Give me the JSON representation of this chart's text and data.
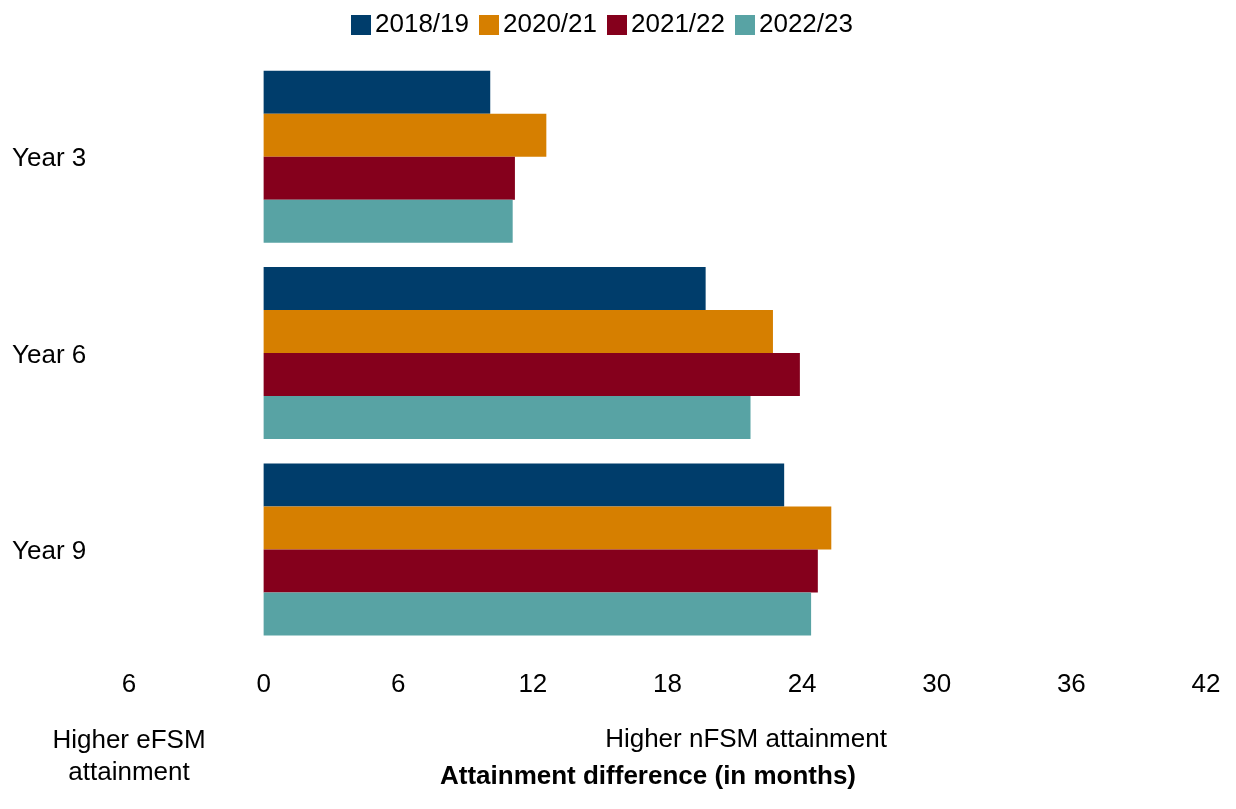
{
  "chart_data": {
    "type": "bar",
    "orientation": "horizontal",
    "xlabel": "Attainment difference (in months)",
    "categories": [
      "Year 3",
      "Year 6",
      "Year 9"
    ],
    "series": [
      {
        "name": "2018/19",
        "color": "#003d6b",
        "values": [
          10.1,
          19.7,
          23.2
        ]
      },
      {
        "name": "2020/21",
        "color": "#d67f00",
        "values": [
          12.6,
          22.7,
          25.3
        ]
      },
      {
        "name": "2021/22",
        "color": "#85001c",
        "values": [
          11.2,
          23.9,
          24.7
        ]
      },
      {
        "name": "2022/23",
        "color": "#58a3a4",
        "values": [
          11.1,
          21.7,
          24.4
        ]
      }
    ],
    "xlim": [
      -6,
      42
    ],
    "xticks": [
      {
        "value": -6,
        "label": "6"
      },
      0,
      6,
      12,
      18,
      24,
      30,
      36,
      42
    ],
    "grid": false,
    "legend": "top",
    "annotations": [
      "Higher eFSM attainment",
      "Higher nFSM attainment"
    ]
  }
}
